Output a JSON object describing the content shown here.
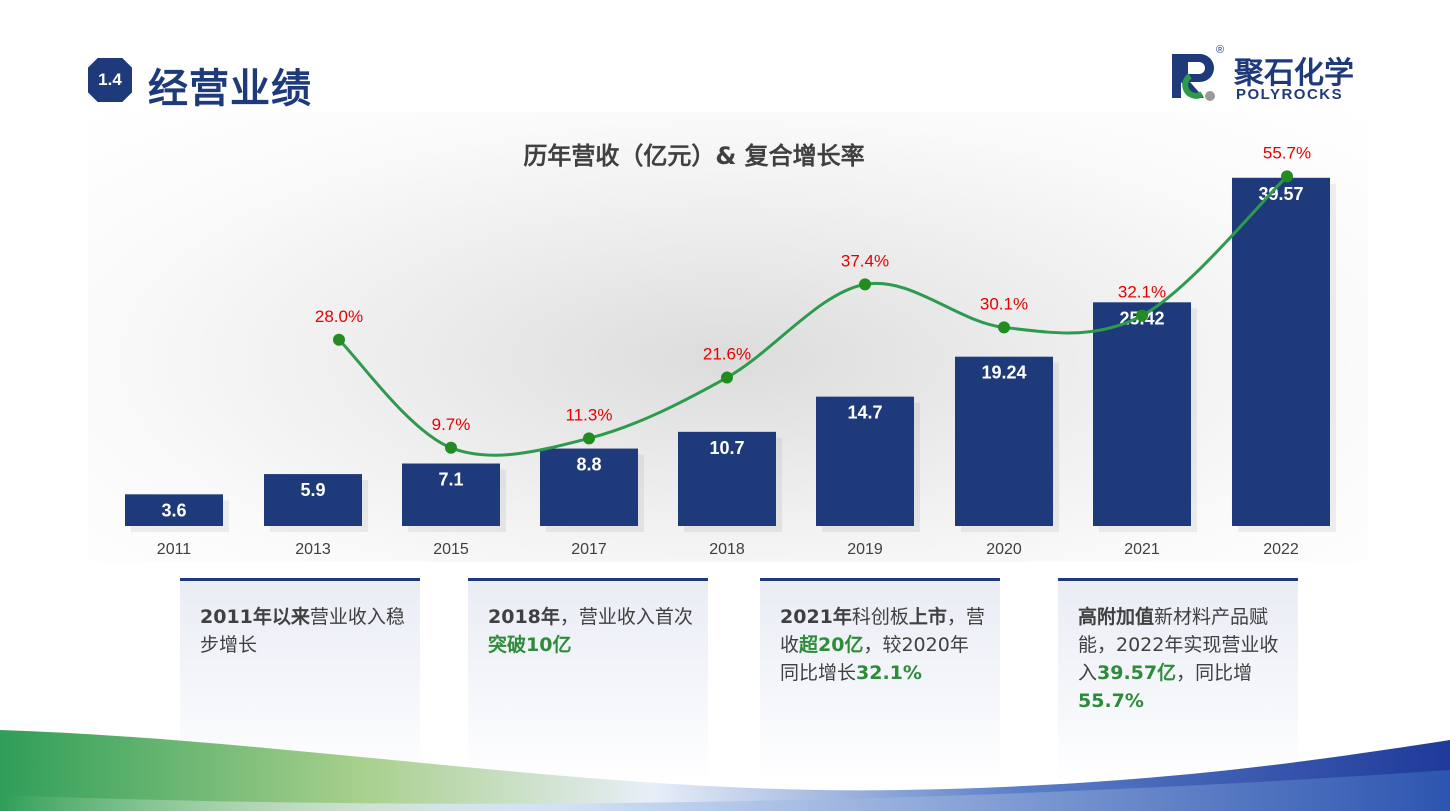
{
  "header": {
    "section_number": "1.4",
    "title": "经营业绩"
  },
  "logo": {
    "name_cn": "聚石化学",
    "name_en": "POLYROCKS",
    "registered": "®"
  },
  "colors": {
    "bar": "#1f3a7a",
    "line": "#2e9a4e",
    "point": "#228b22",
    "growth_label": "#e60000",
    "highlight": "#2e8b3a"
  },
  "chart_data": {
    "type": "bar",
    "title": "历年营收（亿元）& 复合增长率",
    "categories": [
      "2011",
      "2013",
      "2015",
      "2017",
      "2018",
      "2019",
      "2020",
      "2021",
      "2022"
    ],
    "series": [
      {
        "values": [
          3.6,
          5.9,
          7.1,
          8.8,
          10.7,
          14.7,
          19.24,
          25.42,
          39.57
        ],
        "value_labels": [
          "3.6",
          "5.9",
          "7.1",
          "8.8",
          "10.7",
          "14.7",
          "19.24",
          "25.42",
          "39.57"
        ]
      },
      {
        "type": "line",
        "values": [
          null,
          28.0,
          9.7,
          11.3,
          21.6,
          37.4,
          30.1,
          32.1,
          55.7
        ],
        "value_labels": [
          null,
          "28.0%",
          "9.7%",
          "11.3%",
          "21.6%",
          "37.4%",
          "30.1%",
          "32.1%",
          "55.7%"
        ]
      }
    ],
    "ylim": [
      0,
      40
    ],
    "y2lim": [
      0,
      60
    ],
    "grid": false,
    "legend": "none"
  },
  "cards": [
    {
      "parts": [
        {
          "t": "2011年以来",
          "s": "b"
        },
        {
          "t": "营业收入稳步增长",
          "s": ""
        }
      ]
    },
    {
      "parts": [
        {
          "t": "2018年",
          "s": "b"
        },
        {
          "t": "，营业收入首次",
          "s": ""
        },
        {
          "t": "突破10亿",
          "s": "g"
        }
      ]
    },
    {
      "parts": [
        {
          "t": "2021年",
          "s": "b"
        },
        {
          "t": "科创板",
          "s": ""
        },
        {
          "t": "上市",
          "s": "b"
        },
        {
          "t": "，营收",
          "s": ""
        },
        {
          "t": "超20亿",
          "s": "g"
        },
        {
          "t": "，较2020年同比增长",
          "s": ""
        },
        {
          "t": "32.1%",
          "s": "g"
        }
      ]
    },
    {
      "parts": [
        {
          "t": "高附加值",
          "s": "b"
        },
        {
          "t": "新材料产品赋能，2022年实现营业收入",
          "s": ""
        },
        {
          "t": "39.57亿",
          "s": "g"
        },
        {
          "t": "，同比增",
          "s": ""
        },
        {
          "t": "55.7%",
          "s": "g"
        }
      ]
    }
  ]
}
